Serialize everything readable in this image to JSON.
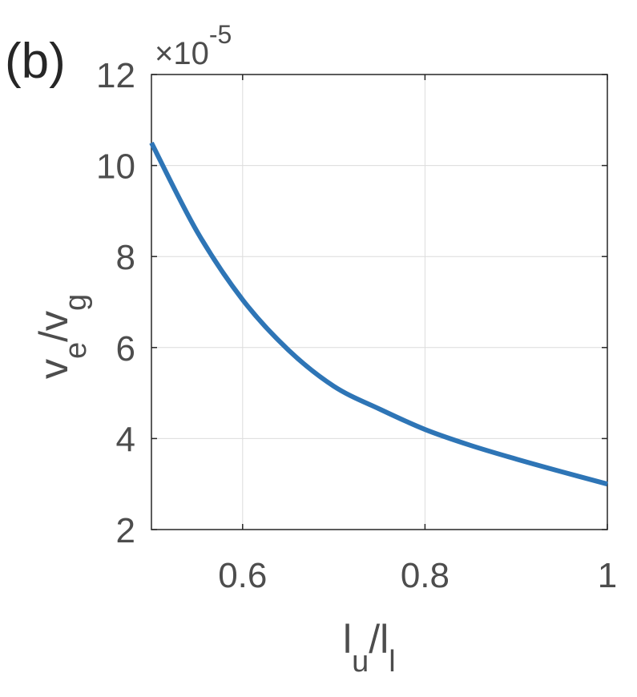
{
  "panel_label": "(b)",
  "chart_data": {
    "type": "line",
    "x_label": {
      "base": "l",
      "sub": "u",
      "sep": "/",
      "base2": "l",
      "sub2": "l"
    },
    "y_label": {
      "base": "v",
      "sub": "e",
      "sep": "/",
      "base2": "v",
      "sub2": "g"
    },
    "y_exponent": {
      "times": "×",
      "base": "10",
      "power": "-5"
    },
    "xlim": [
      0.5,
      1.0
    ],
    "ylim": [
      2,
      12
    ],
    "x_ticks": [
      0.6,
      0.8,
      1.0
    ],
    "x_tick_labels": [
      "0.6",
      "0.8",
      "1"
    ],
    "y_ticks": [
      2,
      4,
      6,
      8,
      10,
      12
    ],
    "y_tick_labels": [
      "2",
      "4",
      "6",
      "8",
      "10",
      "12"
    ],
    "grid": true,
    "series": [
      {
        "color": "#2e75b6",
        "x": [
          0.5,
          0.55,
          0.6,
          0.65,
          0.7,
          0.75,
          0.8,
          0.85,
          0.9,
          0.95,
          1.0
        ],
        "y": [
          10.5,
          8.55,
          7.05,
          5.95,
          5.15,
          4.65,
          4.2,
          3.85,
          3.55,
          3.27,
          3.0
        ]
      }
    ]
  }
}
